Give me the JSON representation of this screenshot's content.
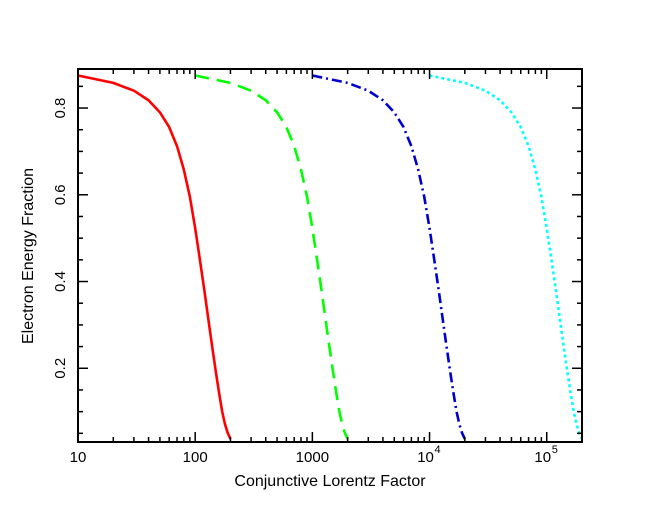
{
  "chart_data": {
    "type": "line",
    "title": "",
    "xlabel": "Conjunctive Lorentz Factor",
    "ylabel": "Electron Energy Fraction",
    "xscale": "log",
    "xlim": [
      10,
      200000
    ],
    "ylim": [
      0.03,
      0.89
    ],
    "grid": false,
    "x_ticks": [
      {
        "value": 10,
        "base": "10",
        "exp": ""
      },
      {
        "value": 100,
        "base": "100",
        "exp": ""
      },
      {
        "value": 1000,
        "base": "1000",
        "exp": ""
      },
      {
        "value": 10000,
        "base": "10",
        "exp": "4"
      },
      {
        "value": 100000,
        "base": "10",
        "exp": "5"
      }
    ],
    "y_ticks": [
      {
        "value": 0.2,
        "label": "0.2"
      },
      {
        "value": 0.4,
        "label": "0.4"
      },
      {
        "value": 0.6,
        "label": "0.6"
      },
      {
        "value": 0.8,
        "label": "0.8"
      }
    ],
    "series": [
      {
        "color": "#ff0000",
        "dash": "solid",
        "x": [
          10,
          20,
          30,
          40,
          50,
          60,
          70,
          80,
          90,
          100,
          110,
          120,
          130,
          140,
          150,
          160,
          170,
          180,
          190,
          200
        ],
        "y": [
          0.875,
          0.858,
          0.84,
          0.818,
          0.79,
          0.756,
          0.712,
          0.658,
          0.596,
          0.523,
          0.448,
          0.378,
          0.31,
          0.248,
          0.192,
          0.143,
          0.1,
          0.07,
          0.05,
          0.037
        ]
      },
      {
        "color": "#00ff00",
        "dash": "dashed",
        "x": [
          100,
          200,
          300,
          400,
          500,
          600,
          700,
          800,
          900,
          1000,
          1100,
          1200,
          1300,
          1400,
          1500,
          1600,
          1700,
          1800,
          1900,
          2000
        ],
        "y": [
          0.875,
          0.858,
          0.84,
          0.818,
          0.79,
          0.756,
          0.712,
          0.658,
          0.596,
          0.523,
          0.448,
          0.378,
          0.31,
          0.248,
          0.192,
          0.143,
          0.1,
          0.07,
          0.05,
          0.037
        ]
      },
      {
        "color": "#0000cc",
        "dash": "dashdot",
        "x": [
          1000,
          2000,
          3000,
          4000,
          5000,
          6000,
          7000,
          8000,
          9000,
          10000,
          11000,
          12000,
          13000,
          14000,
          15000,
          16000,
          17000,
          18000,
          19000,
          20000
        ],
        "y": [
          0.875,
          0.858,
          0.84,
          0.818,
          0.79,
          0.756,
          0.712,
          0.658,
          0.596,
          0.523,
          0.448,
          0.378,
          0.31,
          0.248,
          0.192,
          0.143,
          0.1,
          0.07,
          0.05,
          0.037
        ]
      },
      {
        "color": "#00ffff",
        "dash": "dotted",
        "x": [
          10000,
          20000,
          30000,
          40000,
          50000,
          60000,
          70000,
          80000,
          90000,
          100000,
          110000,
          120000,
          130000,
          140000,
          150000,
          160000,
          170000,
          180000,
          190000,
          200000
        ],
        "y": [
          0.875,
          0.858,
          0.84,
          0.818,
          0.79,
          0.756,
          0.712,
          0.658,
          0.596,
          0.523,
          0.448,
          0.378,
          0.31,
          0.248,
          0.192,
          0.143,
          0.1,
          0.07,
          0.05,
          0.037
        ]
      }
    ]
  }
}
